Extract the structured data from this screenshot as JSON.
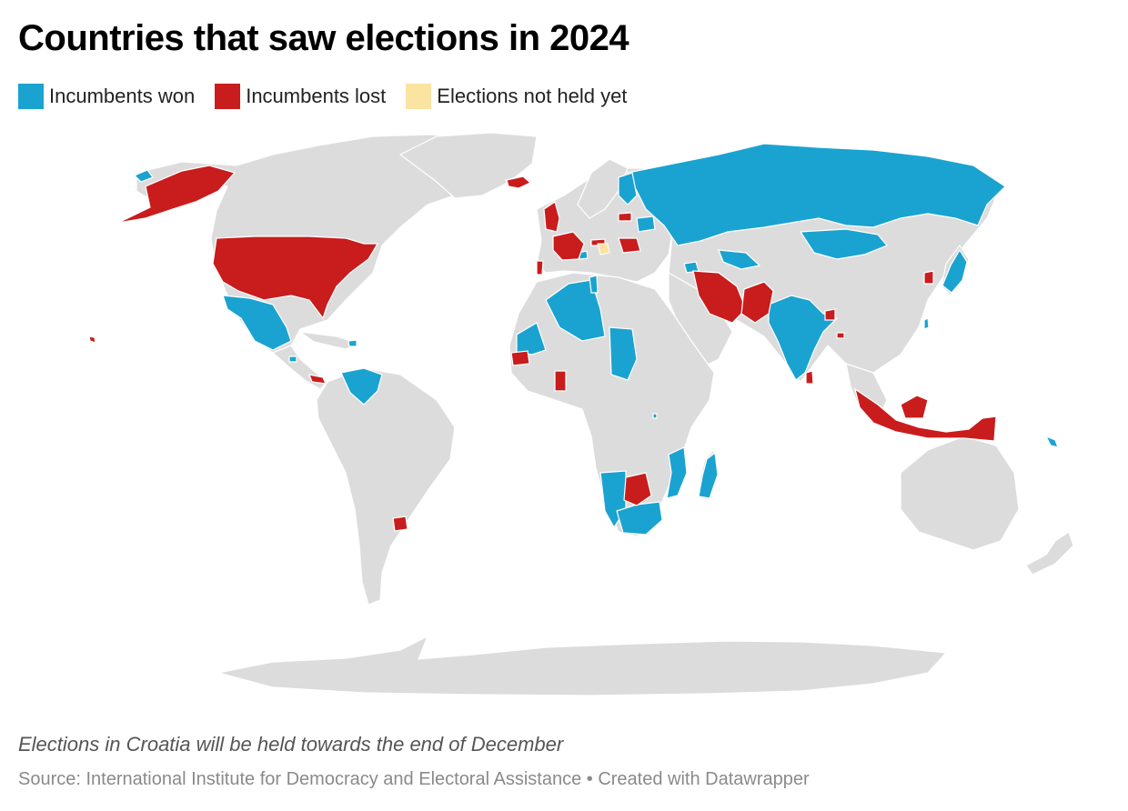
{
  "title": "Countries that saw elections in 2024",
  "legend": [
    {
      "label": "Incumbents won",
      "color": "#1aa3d0"
    },
    {
      "label": "Incumbents lost",
      "color": "#c91c1c"
    },
    {
      "label": "Elections not held yet",
      "color": "#fbe3a1"
    }
  ],
  "colors": {
    "land": "#dcdcdc",
    "won": "#1aa3d0",
    "lost": "#c91c1c",
    "pending": "#fbe3a1"
  },
  "note": "Elections in Croatia will be held towards the end of December",
  "source": "Source: International Institute for Democracy and Electoral Assistance • Created with Datawrapper"
}
